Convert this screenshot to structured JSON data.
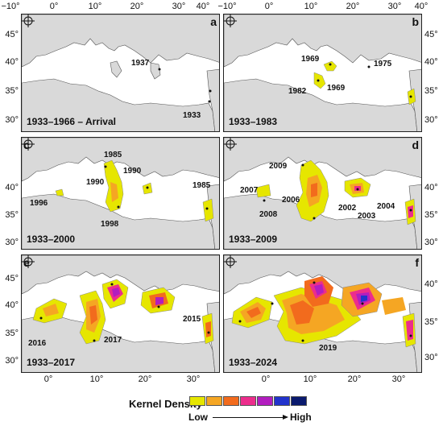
{
  "axes": {
    "top_left_lon": [
      "−10°",
      "0°",
      "10°",
      "20°",
      "30°",
      "40°"
    ],
    "top_right_lon": [
      "−10°",
      "0°",
      "10°",
      "20°",
      "30°",
      "40°"
    ],
    "bottom_left_lon": [
      "0°",
      "10°",
      "20°",
      "30°"
    ],
    "bottom_right_lon": [
      "0°",
      "10°",
      "20°",
      "30°"
    ],
    "row1_left_lat": [
      "45°",
      "40°",
      "35°",
      "30°"
    ],
    "row1_right_lat": [
      "45°",
      "40°",
      "35°",
      "30°"
    ],
    "row2_left_lat": [
      "40°",
      "35°",
      "30°"
    ],
    "row2_right_lat": [
      "40°",
      "35°",
      "30°"
    ],
    "row3_left_lat": [
      "45°",
      "40°",
      "35°",
      "30°"
    ],
    "row3_right_lat": [
      "40°",
      "35°",
      "30°"
    ]
  },
  "panels": [
    {
      "label": "a",
      "title": "1933–1966 – Arrival",
      "years": [
        "1937",
        "1933"
      ]
    },
    {
      "label": "b",
      "title": "1933–1983",
      "years": [
        "1969",
        "1975",
        "1982",
        "1969"
      ]
    },
    {
      "label": "c",
      "title": "1933–2000",
      "years": [
        "1985",
        "1990",
        "1990",
        "1996",
        "1998",
        "1985"
      ]
    },
    {
      "label": "d",
      "title": "1933–2009",
      "years": [
        "2009",
        "2007",
        "2006",
        "2008",
        "2002",
        "2003",
        "2004"
      ]
    },
    {
      "label": "e",
      "title": "1933–2017",
      "years": [
        "2016",
        "2017",
        "2015"
      ]
    },
    {
      "label": "f",
      "title": "1933–2024",
      "years": [
        "2019"
      ]
    }
  ],
  "legend": {
    "title": "Kernel Density",
    "low": "Low",
    "high": "High",
    "colors": [
      "#e6e600",
      "#f5a623",
      "#f26b1d",
      "#ec2d8c",
      "#b21dbf",
      "#2233cc",
      "#0a1a6e"
    ]
  },
  "colors": {
    "land": "#d9d9d9",
    "sea": "#ffffff",
    "coast": "#555555",
    "density_low": "#e6e600",
    "density_mid": "#f5a623",
    "density_high": "#ec2d8c"
  }
}
